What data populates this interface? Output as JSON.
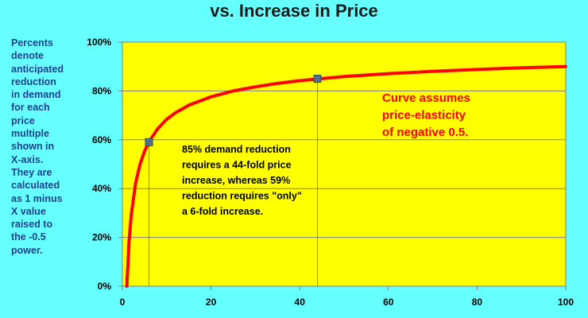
{
  "chart_data": {
    "type": "line",
    "title": "vs. Increase in Price",
    "side_note": "Percents denote anticipated reduction in demand for each price multiple shown in X-axis. They are calculated as 1 minus X value raised to the -0.5 power.",
    "xlim": [
      0,
      100
    ],
    "ylim": [
      0,
      1
    ],
    "x_ticks": [
      0,
      20,
      40,
      60,
      80,
      100
    ],
    "x_tick_labels": [
      "0",
      "20",
      "40",
      "60",
      "80",
      "100"
    ],
    "y_ticks": [
      0,
      0.2,
      0.4,
      0.6,
      0.8,
      1.0
    ],
    "y_tick_labels": [
      "0%",
      "20%",
      "40%",
      "60%",
      "80%",
      "100%"
    ],
    "grid": "horizontal",
    "series": [
      {
        "color": "#ff0000",
        "x": [
          1,
          1.5,
          2,
          3,
          4,
          5,
          6,
          8,
          10,
          12,
          15,
          20,
          25,
          30,
          35,
          40,
          44,
          50,
          60,
          70,
          80,
          90,
          100
        ],
        "y": [
          0.0,
          0.184,
          0.293,
          0.423,
          0.5,
          0.553,
          0.592,
          0.646,
          0.684,
          0.711,
          0.742,
          0.776,
          0.8,
          0.817,
          0.831,
          0.842,
          0.849,
          0.859,
          0.871,
          0.88,
          0.888,
          0.895,
          0.9
        ]
      }
    ],
    "markers": [
      {
        "x": 6,
        "y": 0.59,
        "color": "#4f6f8f"
      },
      {
        "x": 44,
        "y": 0.85,
        "color": "#4f6f8f"
      }
    ],
    "annotations": [
      {
        "lines": [
          "85% demand reduction",
          "requires a 44-fold price",
          "increase, whereas 59%",
          "reduction requires \"only\"",
          "a 6-fold increase."
        ],
        "color": "#000000"
      },
      {
        "lines": [
          "Curve assumes",
          "price-elasticity",
          "of negative 0.5."
        ],
        "color": "#ff0000"
      }
    ],
    "plot_background": "#ffff00",
    "page_background": "#66ffff"
  }
}
